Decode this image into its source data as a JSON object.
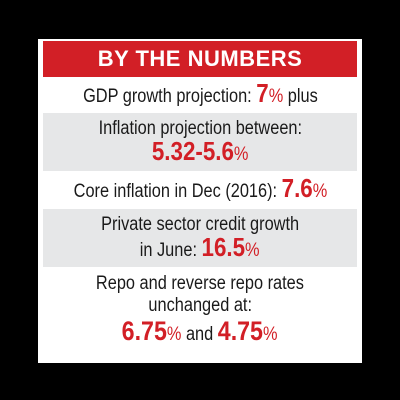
{
  "header": {
    "title": "BY THE NUMBERS"
  },
  "items": [
    {
      "text": "GDP growth projection: ",
      "value": "7",
      "unit": "%",
      "suffix": " plus"
    },
    {
      "text": "Inflation projection between:",
      "value": "5.32-5.6",
      "unit": "%"
    },
    {
      "text": "Core inflation in Dec (2016): ",
      "value": "7.6",
      "unit": "%"
    },
    {
      "text_line1": "Private sector credit growth",
      "text_line2": "in June: ",
      "value": "16.5",
      "unit": "%"
    },
    {
      "text_line1": "Repo and reverse repo rates",
      "text_line2": "unchanged at:",
      "value1": "6.75",
      "unit1": "%",
      "joiner": " and ",
      "value2": "4.75",
      "unit2": "%"
    }
  ],
  "colors": {
    "accent": "#d21f26",
    "shade": "#e6e7e8",
    "background": "#000000"
  }
}
